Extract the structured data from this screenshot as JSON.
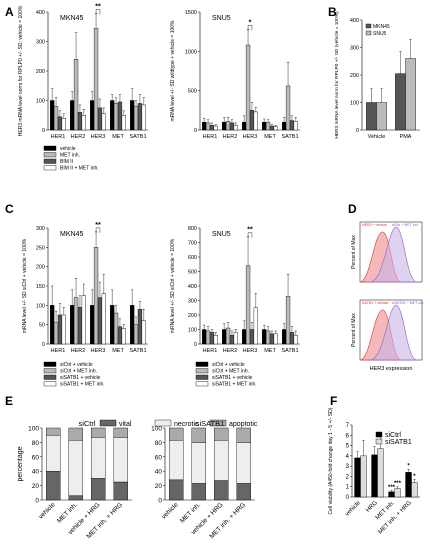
{
  "panels": {
    "A": "A",
    "B": "B",
    "C": "C",
    "D": "D",
    "E": "E",
    "F": "F"
  },
  "chart_data": [
    {
      "id": "A1",
      "type": "bar",
      "title": "MKN45",
      "ylabel": "HER3 mRNA level norm for RPLP0 +/- SD; vehicle = 100%",
      "categories": [
        "HER1",
        "HER2",
        "HER3",
        "MET",
        "SATB1"
      ],
      "ylim": [
        0,
        400
      ],
      "yticks": [
        "0",
        "100",
        "200",
        "300",
        "400"
      ],
      "series": [
        {
          "name": "vehicle",
          "values": [
            100,
            100,
            100,
            100,
            100
          ]
        },
        {
          "name": "MET inh.",
          "values": [
            80,
            240,
            345,
            90,
            80
          ]
        },
        {
          "name": "BIM II",
          "values": [
            45,
            60,
            75,
            95,
            90
          ]
        },
        {
          "name": "BIM II + MET inh.",
          "values": [
            40,
            50,
            55,
            50,
            85
          ]
        }
      ],
      "errors": [
        [
          40,
          30,
          30,
          20,
          40
        ],
        [
          30,
          90,
          50,
          20,
          20
        ],
        [
          20,
          25,
          30,
          25,
          30
        ],
        [
          15,
          20,
          20,
          15,
          25
        ]
      ],
      "significance": {
        "label": "**",
        "between": [
          1,
          2
        ],
        "category": 2
      }
    },
    {
      "id": "A2",
      "type": "bar",
      "title": "SNU5",
      "ylabel": "mRNA level +/- SD wildtype + vehicle = 100%",
      "categories": [
        "HER1",
        "HER2",
        "HER3",
        "MET",
        "SATB1"
      ],
      "ylim": [
        0,
        1500
      ],
      "yticks": [
        "0",
        "500",
        "1000",
        "1500"
      ],
      "series": [
        {
          "name": "vehicle",
          "values": [
            100,
            100,
            100,
            100,
            100
          ]
        },
        {
          "name": "MET inh.",
          "values": [
            90,
            110,
            1080,
            100,
            560
          ]
        },
        {
          "name": "BIM II",
          "values": [
            60,
            90,
            250,
            50,
            120
          ]
        },
        {
          "name": "BIM II + MET inh.",
          "values": [
            50,
            60,
            230,
            40,
            110
          ]
        }
      ],
      "errors": [
        [
          50,
          60,
          80,
          40,
          60
        ],
        [
          40,
          50,
          200,
          30,
          300
        ],
        [
          30,
          40,
          100,
          20,
          60
        ],
        [
          20,
          30,
          60,
          20,
          50
        ]
      ],
      "significance": {
        "label": "*",
        "between": [
          1,
          2
        ],
        "category": 2
      }
    },
    {
      "id": "B",
      "type": "bar",
      "ylabel": "HER3 mRNA level norm for RPLP0 +/- SD (vehicle = 100%)",
      "categories": [
        "Vehicle",
        "PMA"
      ],
      "ylim": [
        0,
        400
      ],
      "yticks": [
        "0",
        "100",
        "200",
        "300",
        "400"
      ],
      "series": [
        {
          "name": "MKN45",
          "values": [
            100,
            205
          ]
        },
        {
          "name": "SNU5",
          "values": [
            100,
            260
          ]
        }
      ],
      "errors": [
        [
          50,
          80
        ],
        [
          50,
          70
        ]
      ]
    },
    {
      "id": "C1",
      "type": "bar",
      "title": "MKN45",
      "ylabel": "mRNA level +/- SD siCtrl + vehicle = 100%",
      "categories": [
        "HER1",
        "HER2",
        "HER3",
        "MET",
        "SATB1"
      ],
      "ylim": [
        0,
        300
      ],
      "yticks": [
        "0",
        "50",
        "100",
        "150",
        "200",
        "250",
        "300"
      ],
      "series": [
        {
          "name": "siCtrl + vehicle",
          "values": [
            100,
            100,
            100,
            100,
            100
          ]
        },
        {
          "name": "siCtrl + MET inh.",
          "values": [
            55,
            120,
            250,
            80,
            50
          ]
        },
        {
          "name": "siSATB1 + vehicle",
          "values": [
            75,
            95,
            120,
            45,
            90
          ]
        },
        {
          "name": "siSATB1 + MET inh.",
          "values": [
            75,
            125,
            130,
            40,
            60
          ]
        }
      ],
      "errors": [
        [
          50,
          40,
          40,
          40,
          40
        ],
        [
          30,
          50,
          40,
          20,
          20
        ],
        [
          30,
          30,
          40,
          20,
          20
        ],
        [
          20,
          30,
          50,
          10,
          30
        ]
      ],
      "significance": {
        "label": "**",
        "between": [
          1,
          2
        ],
        "category": 2
      }
    },
    {
      "id": "C2",
      "type": "bar",
      "title": "SNU5",
      "ylabel": "mRNA level +/- SD siCtrl + vehicle = 100%",
      "categories": [
        "HER1",
        "HER2",
        "HER3",
        "MET",
        "SATB1"
      ],
      "ylim": [
        0,
        800
      ],
      "yticks": [
        "0",
        "100",
        "200",
        "300",
        "400",
        "500",
        "600",
        "700",
        "800"
      ],
      "series": [
        {
          "name": "siCtrl + vehicle",
          "values": [
            100,
            100,
            100,
            100,
            100
          ]
        },
        {
          "name": "siCtrl + MET inh.",
          "values": [
            90,
            110,
            540,
            90,
            330
          ]
        },
        {
          "name": "siSATB1 + vehicle",
          "values": [
            80,
            60,
            100,
            70,
            80
          ]
        },
        {
          "name": "siSATB1 + MET inh.",
          "values": [
            60,
            80,
            250,
            70,
            60
          ]
        }
      ],
      "errors": [
        [
          30,
          40,
          60,
          30,
          40
        ],
        [
          30,
          40,
          200,
          30,
          150
        ],
        [
          20,
          30,
          50,
          20,
          40
        ],
        [
          20,
          20,
          100,
          20,
          30
        ]
      ],
      "significance": {
        "label": "**",
        "between": [
          1,
          2
        ],
        "category": 2
      }
    },
    {
      "id": "D",
      "type": "histogram",
      "xlabel": "HER3 expression",
      "ylabel": "Percent of Max",
      "plots": [
        {
          "legend": [
            "HER3 + vehicle",
            "siCtrl + MET inh."
          ]
        },
        {
          "legend": [
            "SATB1 + vehicle",
            "siSATB1 + MET inh."
          ]
        }
      ]
    },
    {
      "id": "E",
      "type": "stacked-bar",
      "ylabel": "percentage",
      "ylim": [
        0,
        100
      ],
      "yticks": [
        "0",
        "20",
        "40",
        "60",
        "80",
        "100"
      ],
      "legend": [
        "vital",
        "necrotic",
        "apoptotic"
      ],
      "groups": [
        {
          "title": "siCtrl",
          "categories": [
            "vehicle",
            "MET inh.",
            "vehicle + HRG",
            "MET inh. + HRG"
          ],
          "vital": [
            40,
            6,
            30,
            25
          ],
          "necrotic": [
            50,
            77,
            57,
            62
          ],
          "apoptotic": [
            10,
            17,
            13,
            13
          ]
        },
        {
          "title": "siSATB1",
          "categories": [
            "vehicle",
            "MET inh.",
            "vehicle + HRG",
            "MET inh. + HRG"
          ],
          "vital": [
            28,
            23,
            27,
            23
          ],
          "necrotic": [
            55,
            57,
            56,
            57
          ],
          "apoptotic": [
            17,
            20,
            17,
            20
          ]
        }
      ]
    },
    {
      "id": "F",
      "type": "bar",
      "ylabel": "Cell viability (A450-fold change day 1 - 5 +/- SD)",
      "categories": [
        "vehicle",
        "HRG",
        "MET inh.",
        "MET inh. + HRG"
      ],
      "ylim": [
        0,
        7
      ],
      "yticks": [
        "0",
        "1",
        "2",
        "3",
        "4",
        "5",
        "6",
        "7"
      ],
      "series": [
        {
          "name": "siCtrl",
          "values": [
            3.8,
            4.1,
            0.5,
            2.4
          ]
        },
        {
          "name": "siSATB1",
          "values": [
            4.0,
            4.7,
            0.8,
            1.4
          ]
        }
      ],
      "errors": [
        [
          0.6,
          0.8,
          0.15,
          0.3
        ],
        [
          1.5,
          1.6,
          0.2,
          0.3
        ]
      ],
      "significance_labels": [
        "***",
        "***",
        "*",
        "*"
      ]
    }
  ]
}
